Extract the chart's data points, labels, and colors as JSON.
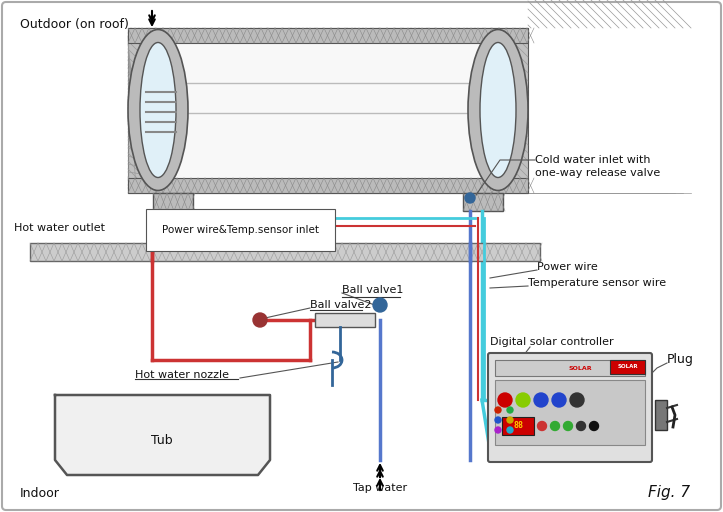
{
  "bg_color": "#ffffff",
  "title_outdoor": "Outdoor (on roof)",
  "title_indoor": "Indoor",
  "fig_label": "Fig. 7",
  "labels": {
    "hot_water_outlet": "Hot water outlet",
    "cold_water_inlet": "Cold water inlet with\none-way release valve",
    "power_wire_temp": "Power wire&Temp.sensor inlet",
    "power_wire": "Power wire",
    "temp_sensor": "Temperature sensor wire",
    "ball_valve1": "Ball valve1",
    "ball_valve2": "Ball valve2",
    "hot_water_nozzle": "Hot water nozzle",
    "tub": "Tub",
    "tap_water": "Tap water",
    "digital_controller": "Digital solar controller",
    "plug": "Plug"
  },
  "colors": {
    "hot_pipe": "#cc3333",
    "cold_pipe": "#5577cc",
    "cyan_pipe": "#44ccdd",
    "tank_insulation": "#bbbbbb",
    "tank_hatch": "#999999",
    "tank_inner": "#f5f5f5",
    "floor_fill": "#cccccc",
    "text_color": "#111111",
    "outline": "#333333",
    "ctrl_bg": "#dddddd",
    "ctrl_screen": "#c0c0c0"
  }
}
